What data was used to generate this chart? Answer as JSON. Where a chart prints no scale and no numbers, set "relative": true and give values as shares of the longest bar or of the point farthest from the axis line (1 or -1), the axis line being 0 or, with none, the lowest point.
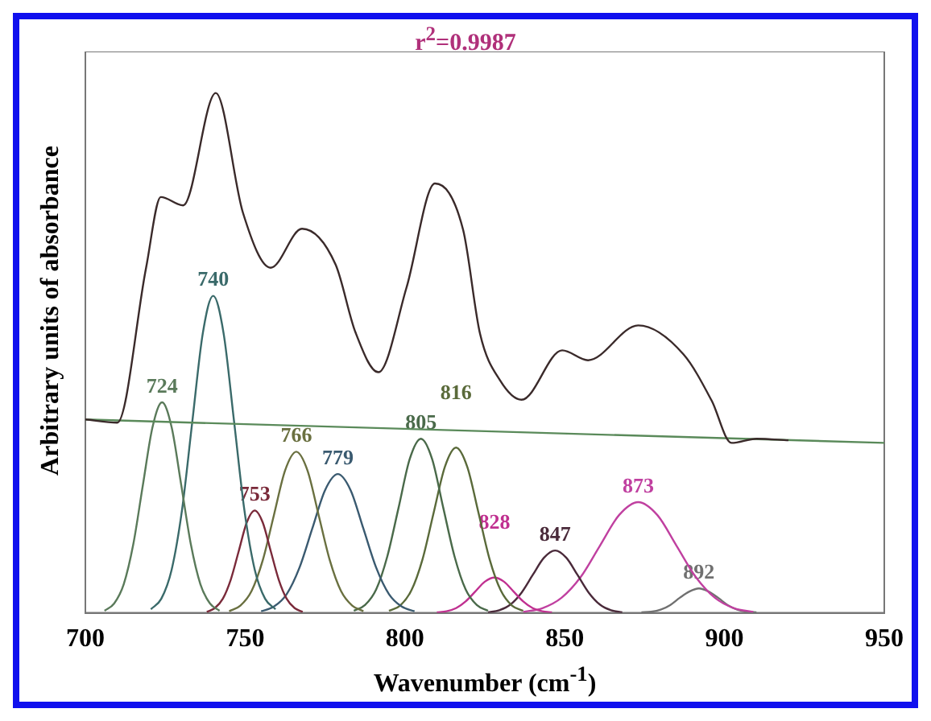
{
  "chart_data": {
    "type": "line",
    "title": "r$^{2}$=0.9987",
    "xlabel": "Wavenumber (cm$^{-1}$)",
    "ylabel": "Arbitrary units of absorbance",
    "relative": true,
    "xlim": [
      700,
      950
    ],
    "xticks": [
      700,
      750,
      800,
      850,
      900,
      950
    ],
    "grid": false,
    "legend": false,
    "marker": "none",
    "line_style": "solid",
    "series": [
      {
        "color": "#3a2a2a",
        "x": [
          700,
          710,
          719,
          723.6,
          730.6,
          740.8,
          749.3,
          758,
          767.8,
          778.3,
          784.5,
          791.7,
          800.5,
          809.4,
          818.2,
          823.5,
          829.8,
          836.5,
          849.2,
          857.3,
          873,
          887.2,
          896,
          902.2,
          910,
          920
        ],
        "values": [
          0.372,
          0.366,
          0.664,
          0.8,
          0.784,
          1.0,
          0.77,
          0.664,
          0.739,
          0.67,
          0.54,
          0.463,
          0.626,
          0.826,
          0.737,
          0.537,
          0.447,
          0.41,
          0.505,
          0.486,
          0.553,
          0.497,
          0.408,
          0.327,
          0.335,
          0.332
        ]
      },
      {
        "color": "#5a8a5a",
        "x": [
          700,
          950
        ],
        "values": [
          0.372,
          0.327
        ]
      },
      {
        "color": "#5a7a5a",
        "x": [
          706,
          709,
          712,
          715,
          718,
          721,
          724,
          727,
          730,
          733,
          736,
          739,
          742
        ],
        "values": [
          0.004,
          0.018,
          0.055,
          0.132,
          0.246,
          0.357,
          0.405,
          0.357,
          0.246,
          0.132,
          0.055,
          0.018,
          0.004
        ]
      },
      {
        "color": "#3a6a6a",
        "x": [
          720.5,
          723.75,
          727,
          730.25,
          733.5,
          736.75,
          740,
          743.25,
          746.5,
          749.75,
          753,
          756.25,
          759.5
        ],
        "values": [
          0.007,
          0.027,
          0.083,
          0.198,
          0.37,
          0.538,
          0.61,
          0.538,
          0.37,
          0.198,
          0.083,
          0.027,
          0.007
        ]
      },
      {
        "color": "#7a2a3a",
        "x": [
          738,
          740.5,
          743,
          745.5,
          748,
          750.5,
          753,
          755.5,
          758,
          760.5,
          763,
          765.5,
          768
        ],
        "values": [
          0.002,
          0.009,
          0.027,
          0.064,
          0.119,
          0.174,
          0.197,
          0.174,
          0.119,
          0.064,
          0.027,
          0.009,
          0.002
        ]
      },
      {
        "color": "#6a7040",
        "x": [
          745,
          748.5,
          752,
          755.5,
          759,
          762.5,
          766,
          769.5,
          773,
          776.5,
          780,
          783.5,
          787
        ],
        "values": [
          0.003,
          0.014,
          0.042,
          0.101,
          0.188,
          0.274,
          0.31,
          0.274,
          0.188,
          0.101,
          0.042,
          0.014,
          0.003
        ]
      },
      {
        "color": "#3a5a70",
        "x": [
          755,
          759,
          763,
          767,
          771,
          775,
          779,
          783,
          787,
          791,
          795,
          799,
          803
        ],
        "values": [
          0.003,
          0.012,
          0.036,
          0.087,
          0.162,
          0.236,
          0.267,
          0.236,
          0.162,
          0.087,
          0.036,
          0.012,
          0.003
        ]
      },
      {
        "color": "#4a6a4a",
        "x": [
          784,
          787.5,
          791,
          794.5,
          798,
          801.5,
          805,
          808.5,
          812,
          815.5,
          819,
          822.5,
          826
        ],
        "values": [
          0.004,
          0.015,
          0.045,
          0.109,
          0.202,
          0.296,
          0.335,
          0.296,
          0.202,
          0.109,
          0.045,
          0.015,
          0.004
        ]
      },
      {
        "color": "#5a6a3a",
        "x": [
          795,
          798.5,
          802,
          805.5,
          809,
          812.5,
          816,
          819.5,
          823,
          826.5,
          830,
          833.5,
          837
        ],
        "values": [
          0.004,
          0.014,
          0.043,
          0.103,
          0.193,
          0.281,
          0.318,
          0.281,
          0.193,
          0.103,
          0.043,
          0.014,
          0.004
        ]
      },
      {
        "color": "#c03090",
        "x": [
          810,
          813,
          816,
          819,
          822,
          825,
          828,
          831,
          834,
          837,
          840,
          843,
          846
        ],
        "values": [
          0.001,
          0.003,
          0.009,
          0.022,
          0.041,
          0.06,
          0.068,
          0.06,
          0.041,
          0.022,
          0.009,
          0.003,
          0.001
        ]
      },
      {
        "color": "#4a2a3a",
        "x": [
          826,
          829.5,
          833,
          836.5,
          840,
          843.5,
          847,
          850.5,
          854,
          857.5,
          861,
          864.5,
          868
        ],
        "values": [
          0.001,
          0.005,
          0.016,
          0.039,
          0.073,
          0.106,
          0.12,
          0.106,
          0.073,
          0.039,
          0.016,
          0.005,
          0.001
        ]
      },
      {
        "color": "#c040a0",
        "x": [
          837,
          843,
          849,
          855,
          861,
          867,
          873,
          879,
          885,
          891,
          897,
          903,
          909
        ],
        "values": [
          0.002,
          0.009,
          0.029,
          0.069,
          0.129,
          0.188,
          0.213,
          0.188,
          0.129,
          0.069,
          0.029,
          0.009,
          0.002
        ]
      },
      {
        "color": "#707070",
        "x": [
          874,
          877,
          880,
          883,
          886,
          889,
          892,
          895,
          898,
          901,
          904,
          907,
          910
        ],
        "values": [
          0.001,
          0.002,
          0.006,
          0.015,
          0.029,
          0.041,
          0.047,
          0.041,
          0.029,
          0.015,
          0.006,
          0.002,
          0.001
        ]
      }
    ],
    "annotations": [
      "724",
      "740",
      "753",
      "766",
      "779",
      "805",
      "816",
      "828",
      "847",
      "873",
      "892"
    ]
  }
}
